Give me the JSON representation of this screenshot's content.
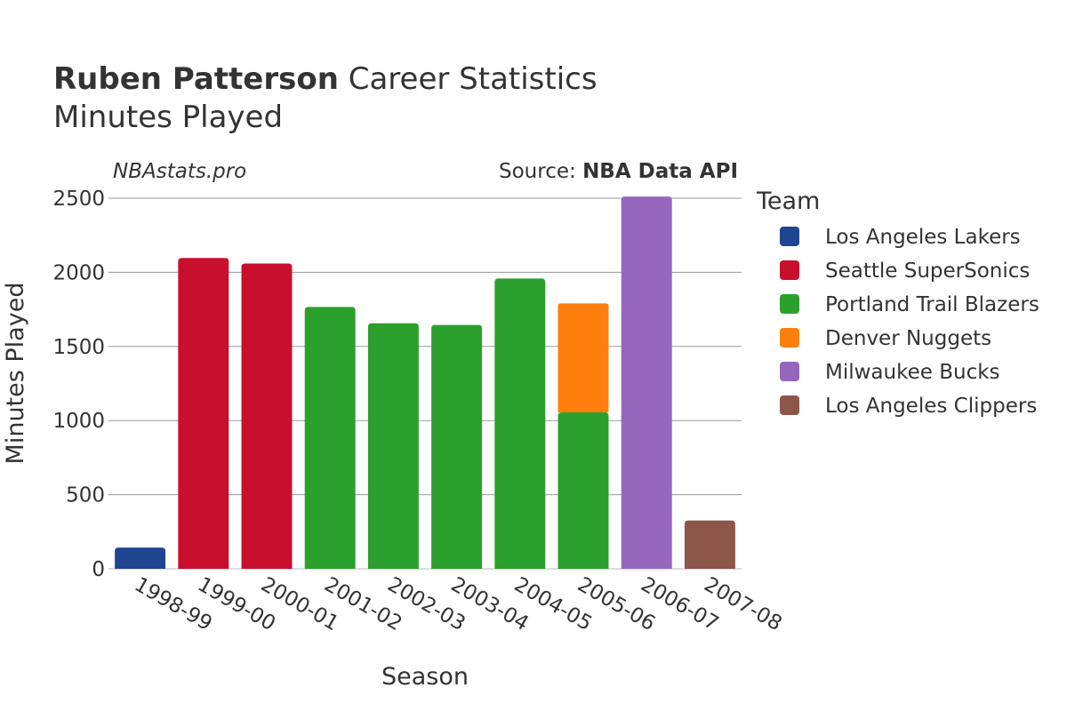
{
  "header": {
    "title_bold": "Ruben Patterson",
    "title_rest": " Career Statistics",
    "subtitle": "Minutes Played",
    "watermark": "NBAstats.pro",
    "source_prefix": "Source: ",
    "source_bold": "NBA Data API"
  },
  "legend": {
    "title": "Team",
    "items": [
      {
        "label": "Los Angeles Lakers",
        "color": "#1f4591"
      },
      {
        "label": "Seattle SuperSonics",
        "color": "#c8102e"
      },
      {
        "label": "Portland Trail Blazers",
        "color": "#2ca02c"
      },
      {
        "label": "Denver Nuggets",
        "color": "#ff7f0e"
      },
      {
        "label": "Milwaukee Bucks",
        "color": "#9467bd"
      },
      {
        "label": "Los Angeles Clippers",
        "color": "#8c564b"
      }
    ]
  },
  "chart_data": {
    "type": "bar",
    "stacked": true,
    "xlabel": "Season",
    "ylabel": "Minutes Played",
    "ylim": [
      0,
      2500
    ],
    "yticks": [
      0,
      500,
      1000,
      1500,
      2000,
      2500
    ],
    "grid": true,
    "legend_position": "right",
    "categories": [
      "1998-99",
      "1999-00",
      "2000-01",
      "2001-02",
      "2002-03",
      "2003-04",
      "2004-05",
      "2005-06",
      "2006-07",
      "2007-08"
    ],
    "series": [
      {
        "name": "Los Angeles Lakers",
        "color": "#1f4591",
        "values": [
          143,
          0,
          0,
          0,
          0,
          0,
          0,
          0,
          0,
          0
        ]
      },
      {
        "name": "Seattle SuperSonics",
        "color": "#c8102e",
        "values": [
          0,
          2097,
          2059,
          0,
          0,
          0,
          0,
          0,
          0,
          0
        ]
      },
      {
        "name": "Portland Trail Blazers",
        "color": "#2ca02c",
        "values": [
          0,
          0,
          0,
          1766,
          1656,
          1645,
          1958,
          1055,
          0,
          0
        ]
      },
      {
        "name": "Denver Nuggets",
        "color": "#ff7f0e",
        "values": [
          0,
          0,
          0,
          0,
          0,
          0,
          0,
          735,
          0,
          0
        ]
      },
      {
        "name": "Milwaukee Bucks",
        "color": "#9467bd",
        "values": [
          0,
          0,
          0,
          0,
          0,
          0,
          0,
          0,
          2511,
          0
        ]
      },
      {
        "name": "Los Angeles Clippers",
        "color": "#8c564b",
        "values": [
          0,
          0,
          0,
          0,
          0,
          0,
          0,
          0,
          0,
          326
        ]
      }
    ]
  }
}
